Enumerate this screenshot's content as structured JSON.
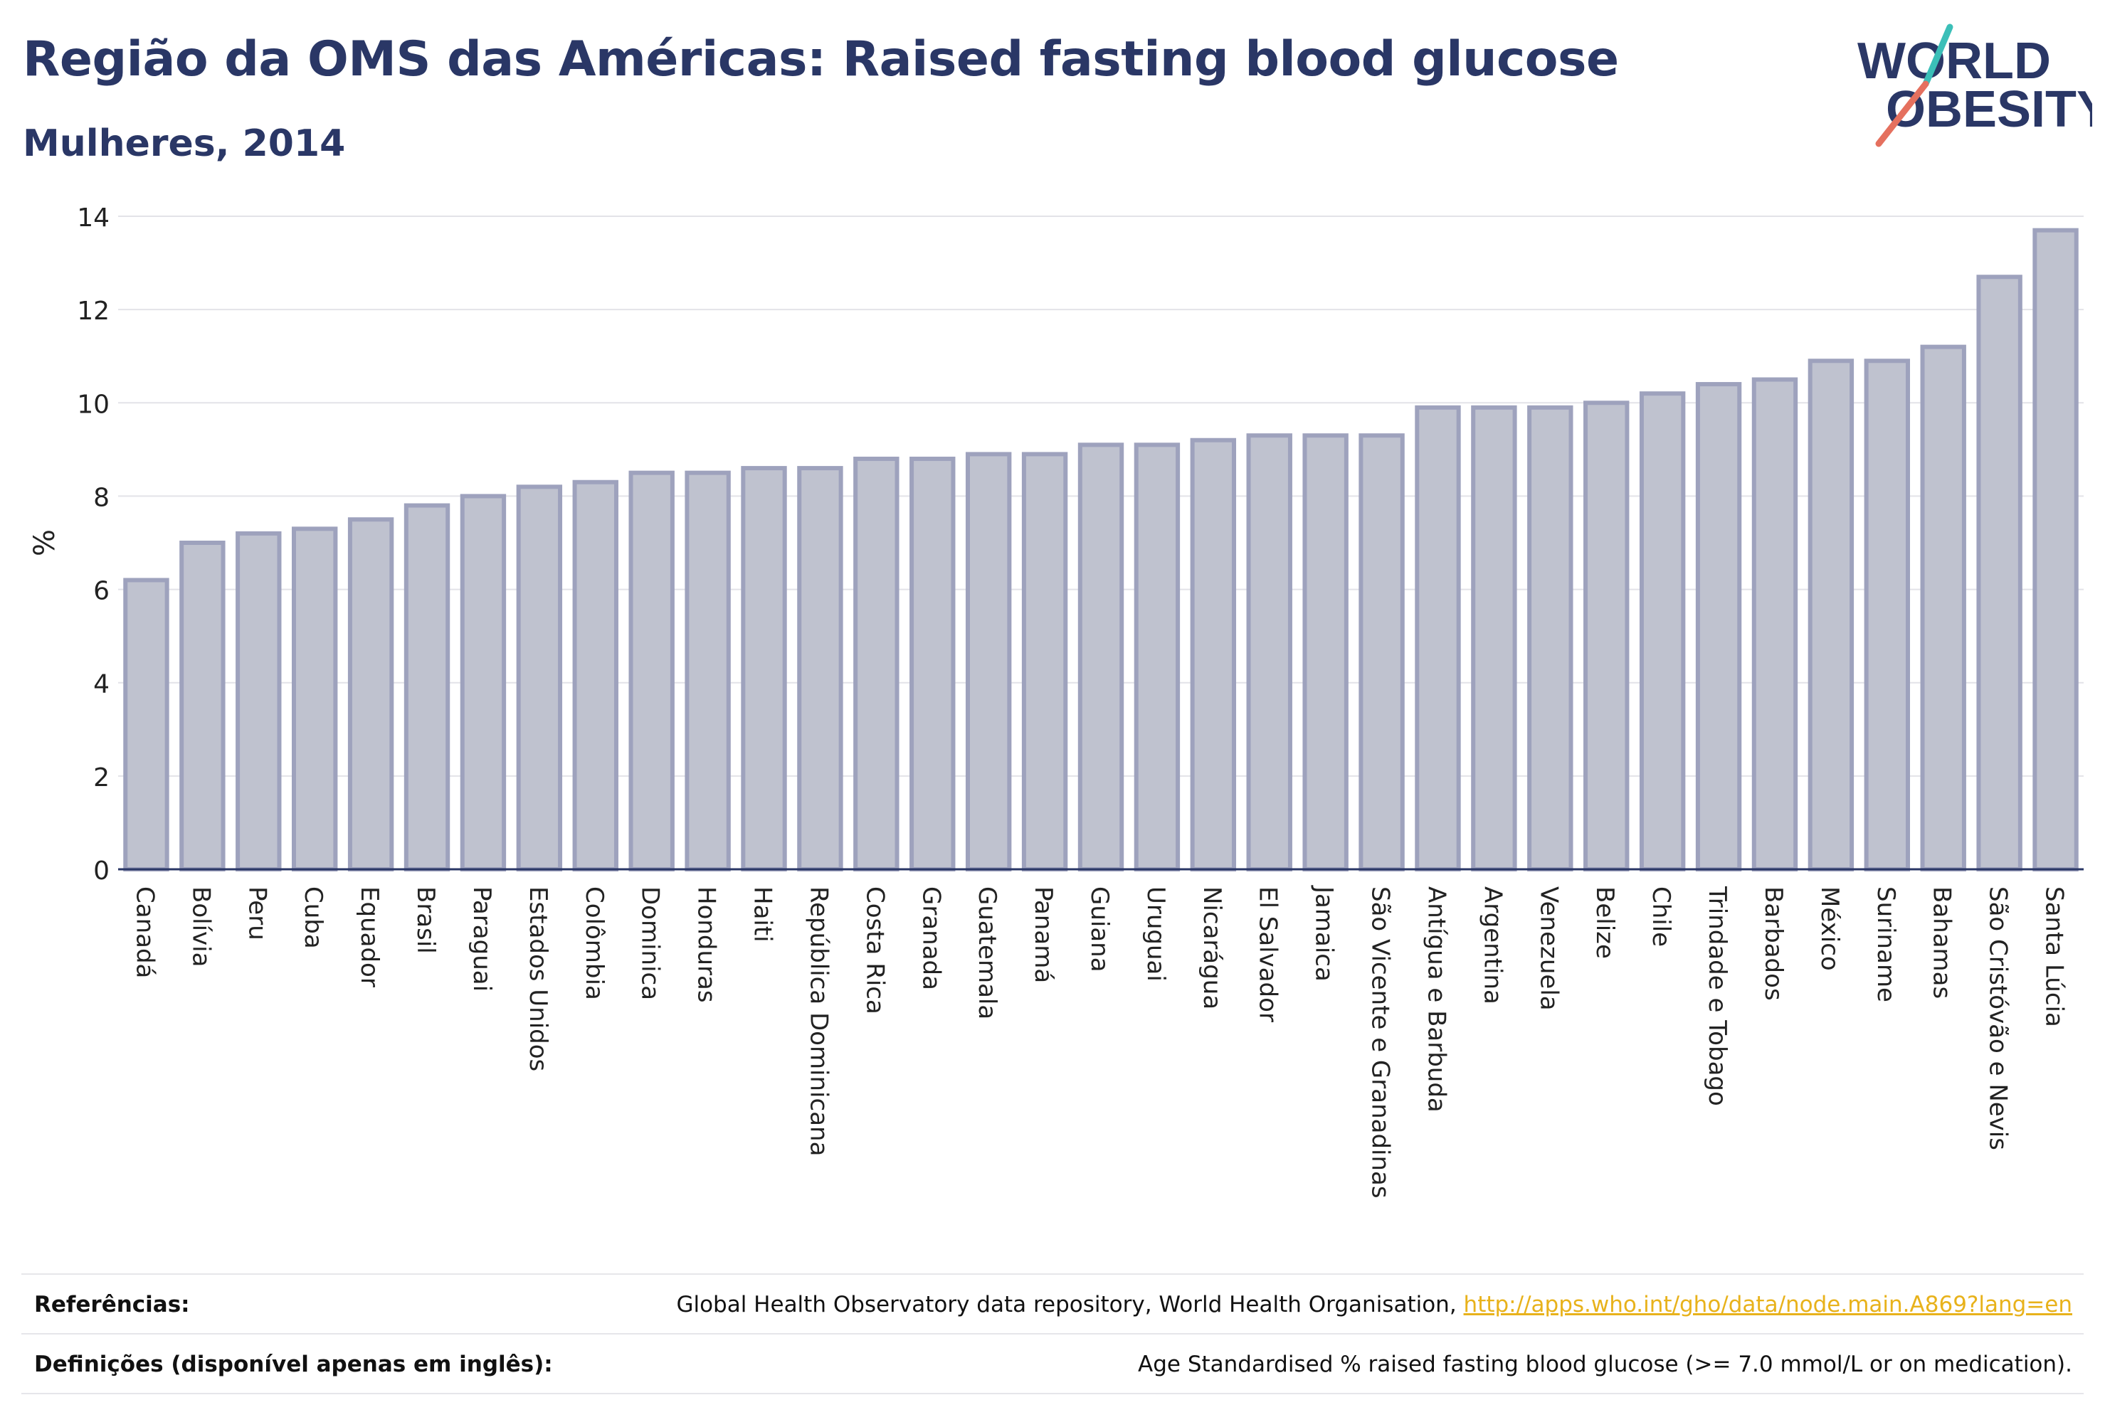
{
  "header": {
    "title": "Região da OMS das Américas: Raised fasting blood glucose",
    "subtitle": "Mulheres, 2014"
  },
  "logo": {
    "line1": "WORLD",
    "line2": "OBESITY",
    "text_color": "#2a3766",
    "slash_colors": [
      "#3bbfb8",
      "#e5705e"
    ]
  },
  "chart_data": {
    "type": "bar",
    "ylabel": "%",
    "xlabel": "",
    "ylim": [
      0,
      14
    ],
    "yticks": [
      0,
      2,
      4,
      6,
      8,
      10,
      12,
      14
    ],
    "grid": true,
    "bar_fill": "#bfc2cf",
    "bar_edge": "#9ea2bd",
    "categories": [
      "Canadá",
      "Bolívia",
      "Peru",
      "Cuba",
      "Equador",
      "Brasil",
      "Paraguai",
      "Estados Unidos",
      "Colômbia",
      "Dominica",
      "Honduras",
      "Haiti",
      "República Dominicana",
      "Costa Rica",
      "Granada",
      "Guatemala",
      "Panamá",
      "Guiana",
      "Uruguai",
      "Nicarágua",
      "El Salvador",
      "Jamaica",
      "São Vicente e Granadinas",
      "Antígua e Barbuda",
      "Argentina",
      "Venezuela",
      "Belize",
      "Chile",
      "Trindade e Tobago",
      "Barbados",
      "México",
      "Suriname",
      "Bahamas",
      "São Cristóvão e Nevis",
      "Santa Lúcia"
    ],
    "values": [
      6.2,
      7.0,
      7.2,
      7.3,
      7.5,
      7.8,
      8.0,
      8.2,
      8.3,
      8.5,
      8.5,
      8.6,
      8.6,
      8.8,
      8.8,
      8.9,
      8.9,
      9.1,
      9.1,
      9.2,
      9.3,
      9.3,
      9.3,
      9.9,
      9.9,
      9.9,
      10.0,
      10.2,
      10.4,
      10.5,
      10.9,
      10.9,
      11.2,
      12.7,
      13.7
    ]
  },
  "footer": {
    "references_label": "Referências:",
    "references_text": "Global Health Observatory data repository, World Health Organisation,",
    "references_link": "http://apps.who.int/gho/data/node.main.A869?lang=en",
    "definitions_label": "Definições (disponível apenas em inglês):",
    "definitions_text": "Age Standardised % raised fasting blood glucose (>= 7.0 mmol/L or on medication)."
  }
}
